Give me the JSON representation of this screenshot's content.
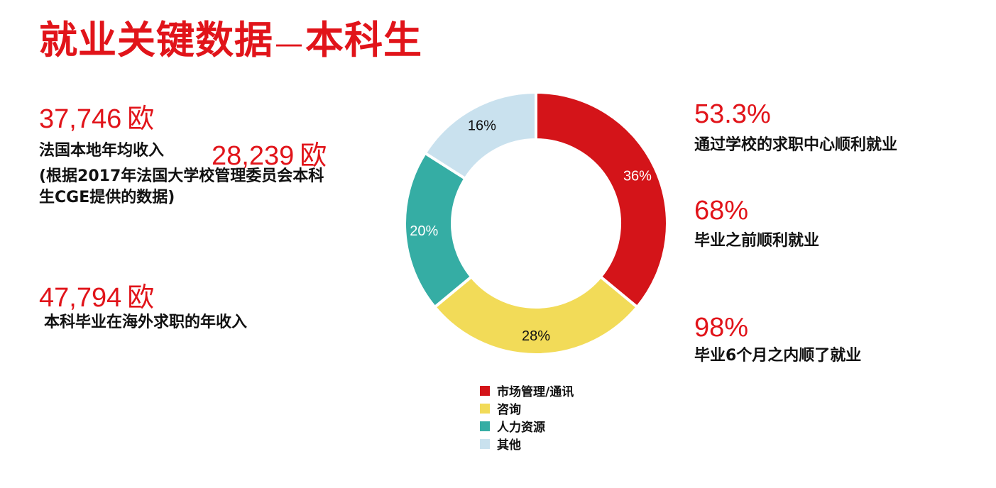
{
  "title": {
    "main": "就业关键数据",
    "separator": "—",
    "sub": "本科生"
  },
  "left": {
    "stat1": {
      "value": "37,746",
      "unit": "欧"
    },
    "stat1_label": "法国本地年均收入",
    "stat2": {
      "value": "28,239",
      "unit": "欧"
    },
    "source_line1": "(根据2017年法国大学校管理委员会本科",
    "source_line2": "生CGE提供的数据)",
    "stat3": {
      "value": "47,794",
      "unit": "欧"
    },
    "stat3_label": "本科毕业在海外求职的年收入"
  },
  "right": {
    "stat1": {
      "value": "53.3%",
      "label": "通过学校的求职中心顺利就业"
    },
    "stat2": {
      "value": "68%",
      "label": "毕业之前顺利就业"
    },
    "stat3": {
      "value": "98%",
      "label": "毕业6个月之内顺了就业"
    }
  },
  "chart_data": {
    "type": "pie",
    "donut": true,
    "categories": [
      "市场管理/通讯",
      "咨询",
      "人力资源",
      "其他"
    ],
    "values": [
      36,
      28,
      20,
      16
    ],
    "value_labels": [
      "36%",
      "28%",
      "20%",
      "16%"
    ],
    "colors": [
      "#d41419",
      "#f2db58",
      "#35ada4",
      "#c9e1ee"
    ],
    "label_colors": [
      "#ffffff",
      "#111111",
      "#ffffff",
      "#111111"
    ],
    "legend_position": "bottom"
  }
}
